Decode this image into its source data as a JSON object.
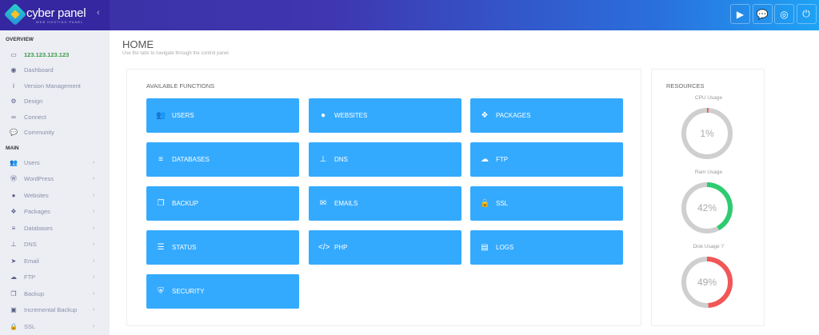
{
  "header": {
    "brand": "cyber panel",
    "brand_sub": "WEB HOSTING PANEL",
    "collapse": "‹",
    "buttons": [
      {
        "name": "youtube-icon",
        "glyph": "▶"
      },
      {
        "name": "chat-icon",
        "glyph": "💬"
      },
      {
        "name": "support-icon",
        "glyph": "◎"
      },
      {
        "name": "power-icon",
        "glyph": "⏻"
      }
    ]
  },
  "sidebar": {
    "overview_label": "OVERVIEW",
    "main_label": "MAIN",
    "overview": [
      {
        "label": "123.123.123.123",
        "icon": "laptop-icon",
        "glyph": "▭"
      },
      {
        "label": "Dashboard",
        "icon": "dashboard-icon",
        "glyph": "◉"
      },
      {
        "label": "Version Management",
        "icon": "info-icon",
        "glyph": "i"
      },
      {
        "label": "Design",
        "icon": "gear-icon",
        "glyph": "⚙"
      },
      {
        "label": "Connect",
        "icon": "link-icon",
        "glyph": "∞"
      },
      {
        "label": "Community",
        "icon": "comments-icon",
        "glyph": "💬"
      }
    ],
    "main": [
      {
        "label": "Users",
        "icon": "users-icon",
        "glyph": "👥"
      },
      {
        "label": "WordPress",
        "icon": "wordpress-icon",
        "glyph": "Ⓦ"
      },
      {
        "label": "Websites",
        "icon": "globe-icon",
        "glyph": "●"
      },
      {
        "label": "Packages",
        "icon": "cubes-icon",
        "glyph": "❖"
      },
      {
        "label": "Databases",
        "icon": "database-icon",
        "glyph": "≡"
      },
      {
        "label": "DNS",
        "icon": "sitemap-icon",
        "glyph": "⊥"
      },
      {
        "label": "Email",
        "icon": "paper-plane-icon",
        "glyph": "➤"
      },
      {
        "label": "FTP",
        "icon": "cloud-upload-icon",
        "glyph": "☁"
      },
      {
        "label": "Backup",
        "icon": "copy-icon",
        "glyph": "❐"
      },
      {
        "label": "Incremental Backup",
        "icon": "save-icon",
        "glyph": "▣"
      },
      {
        "label": "SSL",
        "icon": "lock-icon",
        "glyph": "🔒"
      }
    ],
    "chevron": "›"
  },
  "main": {
    "title": "HOME",
    "subtitle": "Use the tabs to navigate through the control panel",
    "functions_title": "AVAILABLE FUNCTIONS",
    "functions": [
      {
        "label": "USERS",
        "icon": "users-icon",
        "glyph": "👥"
      },
      {
        "label": "WEBSITES",
        "icon": "globe-icon",
        "glyph": "●"
      },
      {
        "label": "PACKAGES",
        "icon": "cubes-icon",
        "glyph": "❖"
      },
      {
        "label": "DATABASES",
        "icon": "database-icon",
        "glyph": "≡"
      },
      {
        "label": "DNS",
        "icon": "sitemap-icon",
        "glyph": "⊥"
      },
      {
        "label": "FTP",
        "icon": "cloud-upload-icon",
        "glyph": "☁"
      },
      {
        "label": "BACKUP",
        "icon": "copy-icon",
        "glyph": "❐"
      },
      {
        "label": "EMAILS",
        "icon": "envelope-icon",
        "glyph": "✉"
      },
      {
        "label": "SSL",
        "icon": "lock-icon",
        "glyph": "🔒"
      },
      {
        "label": "STATUS",
        "icon": "server-icon",
        "glyph": "☰"
      },
      {
        "label": "PHP",
        "icon": "code-icon",
        "glyph": "</>"
      },
      {
        "label": "LOGS",
        "icon": "file-icon",
        "glyph": "▤"
      },
      {
        "label": "SECURITY",
        "icon": "shield-icon",
        "glyph": "⛨"
      }
    ]
  },
  "resources": {
    "title": "RESOURCES",
    "gauges": [
      {
        "label": "CPU Usage",
        "value": 1,
        "text": "1%",
        "color": "#f25656"
      },
      {
        "label": "Ram Usage",
        "value": 42,
        "text": "42%",
        "color": "#2ecc71"
      },
      {
        "label": "Disk Usage '/'",
        "value": 49,
        "text": "49%",
        "color": "#f25656"
      }
    ]
  },
  "colors": {
    "accent": "#34aafe",
    "ip": "#3d9b4a"
  }
}
